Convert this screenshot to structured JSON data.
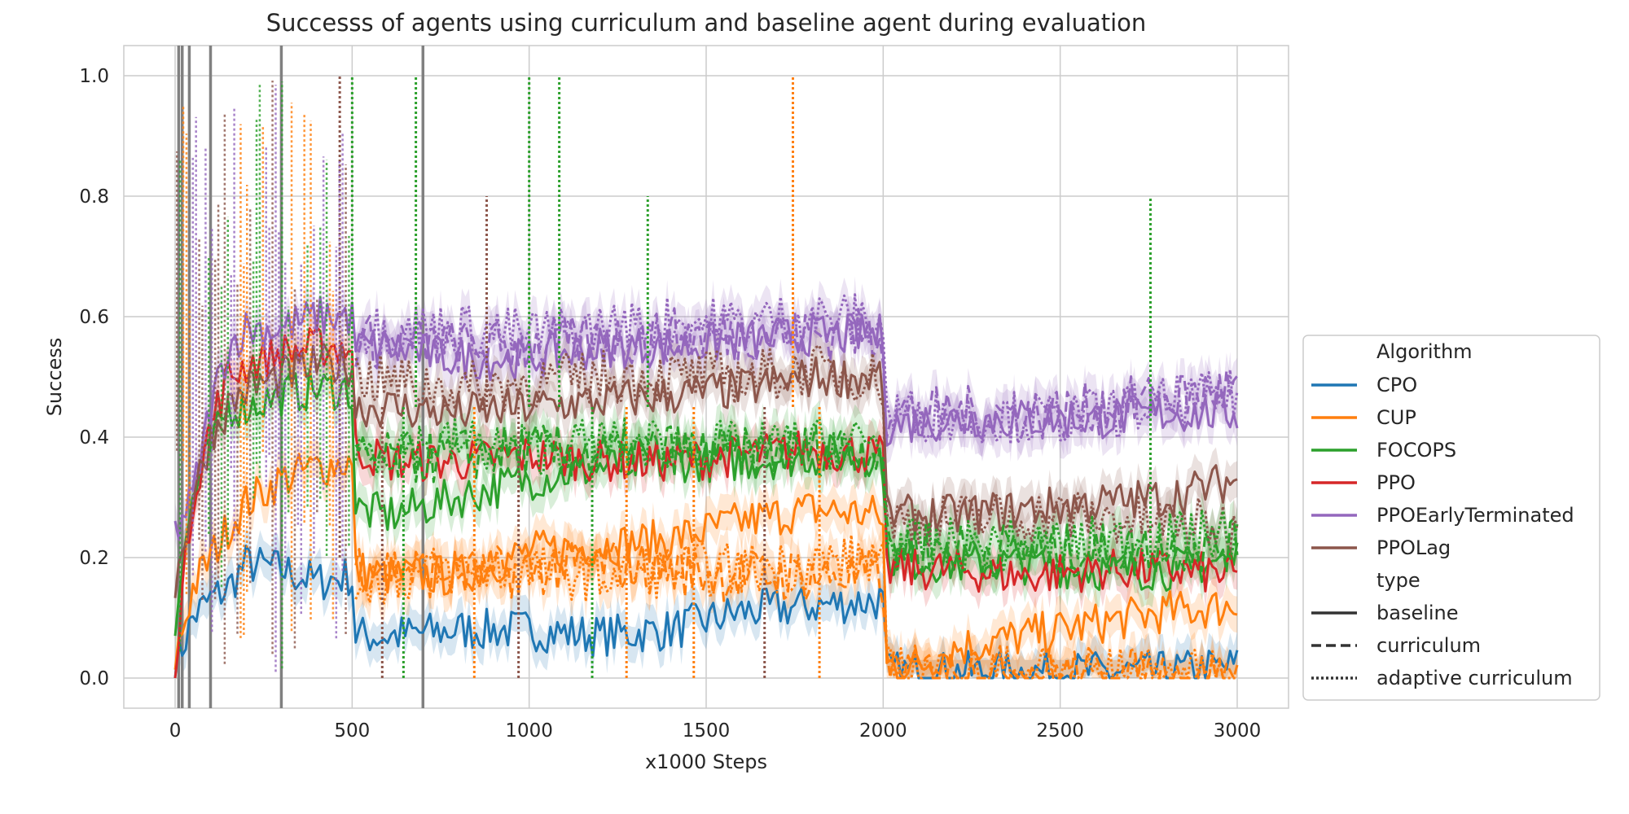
{
  "chart_data": {
    "type": "line",
    "title": "Successs of agents using curriculum and baseline agent during evaluation",
    "xlabel": "x1000 Steps",
    "ylabel": "Success",
    "xlim": [
      -145,
      3145
    ],
    "ylim": [
      -0.05,
      1.05
    ],
    "xticks": [
      0,
      500,
      1000,
      1500,
      2000,
      2500,
      3000
    ],
    "yticks": [
      0.0,
      0.2,
      0.4,
      0.6,
      0.8,
      1.0
    ],
    "xtick_labels": [
      "0",
      "500",
      "1000",
      "1500",
      "2000",
      "2500",
      "3000"
    ],
    "ytick_labels": [
      "0.0",
      "0.2",
      "0.4",
      "0.6",
      "0.8",
      "1.0"
    ],
    "grid": true,
    "legend_position": "right",
    "legend": {
      "algorithm_title": "Algorithm",
      "algorithms": [
        {
          "name": "CPO",
          "color": "#1f77b4"
        },
        {
          "name": "CUP",
          "color": "#ff7f0e"
        },
        {
          "name": "FOCOPS",
          "color": "#2ca02c"
        },
        {
          "name": "PPO",
          "color": "#d62728"
        },
        {
          "name": "PPOEarlyTerminated",
          "color": "#9467bd"
        },
        {
          "name": "PPOLag",
          "color": "#8c564b"
        }
      ],
      "type_title": "type",
      "types": [
        {
          "name": "baseline",
          "dash": "solid"
        },
        {
          "name": "curriculum",
          "dash": "dashed"
        },
        {
          "name": "adaptive curriculum",
          "dash": "dotted"
        }
      ]
    },
    "vertical_markers": [
      10,
      20,
      40,
      100,
      300,
      700
    ],
    "series": [
      {
        "algorithm": "CPO",
        "type": "baseline",
        "x": [
          0,
          50,
          100,
          150,
          200,
          300,
          400,
          499,
          510,
          600,
          800,
          1000,
          1200,
          1400,
          1600,
          1800,
          1999,
          2010,
          2200,
          2400,
          2600,
          2800,
          3000
        ],
        "y": [
          0.02,
          0.1,
          0.13,
          0.15,
          0.19,
          0.18,
          0.16,
          0.17,
          0.07,
          0.07,
          0.08,
          0.08,
          0.07,
          0.08,
          0.11,
          0.12,
          0.13,
          0.01,
          0.01,
          0.01,
          0.01,
          0.01,
          0.02
        ]
      },
      {
        "algorithm": "CUP",
        "type": "baseline",
        "x": [
          0,
          50,
          100,
          150,
          200,
          300,
          400,
          499,
          510,
          600,
          800,
          1000,
          1200,
          1400,
          1600,
          1800,
          1999,
          2010,
          2100,
          2200,
          2400,
          2600,
          2800,
          3000
        ],
        "y": [
          0.03,
          0.15,
          0.2,
          0.25,
          0.29,
          0.33,
          0.35,
          0.36,
          0.18,
          0.17,
          0.17,
          0.21,
          0.22,
          0.23,
          0.26,
          0.28,
          0.27,
          0.02,
          0.02,
          0.05,
          0.07,
          0.09,
          0.11,
          0.12
        ]
      },
      {
        "algorithm": "FOCOPS",
        "type": "baseline",
        "x": [
          0,
          50,
          100,
          150,
          200,
          300,
          400,
          499,
          510,
          600,
          800,
          1000,
          1200,
          1400,
          1600,
          1800,
          1999,
          2010,
          2200,
          2400,
          2600,
          2800,
          3000
        ],
        "y": [
          0.1,
          0.3,
          0.38,
          0.45,
          0.45,
          0.47,
          0.48,
          0.48,
          0.28,
          0.27,
          0.3,
          0.33,
          0.35,
          0.36,
          0.36,
          0.37,
          0.37,
          0.2,
          0.19,
          0.19,
          0.18,
          0.18,
          0.2
        ]
      },
      {
        "algorithm": "PPO",
        "type": "baseline",
        "x": [
          0,
          50,
          100,
          150,
          200,
          300,
          400,
          499,
          510,
          600,
          800,
          1000,
          1200,
          1400,
          1600,
          1800,
          1999,
          2010,
          2200,
          2400,
          2600,
          2800,
          3000
        ],
        "y": [
          0.03,
          0.3,
          0.42,
          0.5,
          0.52,
          0.54,
          0.55,
          0.55,
          0.38,
          0.36,
          0.36,
          0.37,
          0.36,
          0.36,
          0.37,
          0.38,
          0.37,
          0.18,
          0.18,
          0.17,
          0.18,
          0.18,
          0.17
        ]
      },
      {
        "algorithm": "PPOEarlyTerminated",
        "type": "baseline",
        "x": [
          0,
          50,
          100,
          150,
          200,
          300,
          400,
          499,
          510,
          600,
          800,
          1000,
          1200,
          1400,
          1600,
          1800,
          1999,
          2010,
          2200,
          2400,
          2600,
          2800,
          3000
        ],
        "y": [
          0.24,
          0.3,
          0.45,
          0.55,
          0.58,
          0.58,
          0.6,
          0.6,
          0.55,
          0.55,
          0.53,
          0.53,
          0.55,
          0.55,
          0.56,
          0.57,
          0.57,
          0.42,
          0.43,
          0.43,
          0.43,
          0.44,
          0.44
        ]
      },
      {
        "algorithm": "PPOLag",
        "type": "baseline",
        "x": [
          0,
          50,
          100,
          150,
          200,
          300,
          400,
          499,
          510,
          600,
          800,
          1000,
          1200,
          1400,
          1600,
          1800,
          1999,
          2010,
          2200,
          2400,
          2600,
          2800,
          3000
        ],
        "y": [
          0.15,
          0.3,
          0.4,
          0.45,
          0.48,
          0.5,
          0.52,
          0.52,
          0.45,
          0.45,
          0.44,
          0.45,
          0.46,
          0.47,
          0.48,
          0.5,
          0.5,
          0.27,
          0.27,
          0.28,
          0.29,
          0.3,
          0.33
        ]
      },
      {
        "algorithm": "CUP",
        "type": "curriculum",
        "x": [
          510,
          800,
          1000,
          1200,
          1400,
          1600,
          1800,
          1999,
          2010,
          2500,
          3000
        ],
        "y": [
          0.19,
          0.17,
          0.18,
          0.19,
          0.18,
          0.17,
          0.17,
          0.17,
          0.01,
          0.01,
          0.0
        ]
      },
      {
        "algorithm": "PPOEarlyTerminated",
        "type": "curriculum",
        "x": [
          510,
          800,
          1000,
          1200,
          1400,
          1600,
          1800,
          1999,
          2010,
          2500,
          3000
        ],
        "y": [
          0.56,
          0.55,
          0.55,
          0.56,
          0.57,
          0.57,
          0.57,
          0.57,
          0.44,
          0.44,
          0.48
        ]
      },
      {
        "algorithm": "FOCOPS",
        "type": "curriculum",
        "x": [
          510,
          800,
          1000,
          1200,
          1400,
          1600,
          1800,
          1999,
          2010,
          2500,
          3000
        ],
        "y": [
          0.36,
          0.37,
          0.38,
          0.37,
          0.38,
          0.37,
          0.38,
          0.38,
          0.22,
          0.21,
          0.22
        ]
      },
      {
        "algorithm": "CUP",
        "type": "adaptive curriculum",
        "x": [
          510,
          800,
          1000,
          1200,
          1400,
          1600,
          1800,
          1999,
          2010,
          2500,
          3000
        ],
        "y": [
          0.16,
          0.18,
          0.18,
          0.17,
          0.18,
          0.18,
          0.19,
          0.2,
          0.01,
          0.01,
          0.0
        ]
      },
      {
        "algorithm": "PPOLag",
        "type": "adaptive curriculum",
        "x": [
          510,
          800,
          1000,
          1200,
          1400,
          1600,
          1800,
          1999,
          2010,
          2500,
          3000
        ],
        "y": [
          0.5,
          0.48,
          0.49,
          0.5,
          0.5,
          0.5,
          0.51,
          0.5,
          0.26,
          0.27,
          0.25
        ]
      },
      {
        "algorithm": "PPOEarlyTerminated",
        "type": "adaptive curriculum",
        "x": [
          510,
          800,
          1000,
          1200,
          1400,
          1600,
          1800,
          1999,
          2010,
          2500,
          3000
        ],
        "y": [
          0.58,
          0.58,
          0.57,
          0.58,
          0.59,
          0.59,
          0.6,
          0.59,
          0.44,
          0.43,
          0.47
        ]
      },
      {
        "algorithm": "FOCOPS",
        "type": "adaptive curriculum",
        "x": [
          510,
          800,
          1000,
          1200,
          1400,
          1600,
          1800,
          1999,
          2010,
          2500,
          3000
        ],
        "y": [
          0.38,
          0.39,
          0.38,
          0.39,
          0.39,
          0.38,
          0.39,
          0.39,
          0.22,
          0.22,
          0.24
        ]
      }
    ],
    "spikes": [
      {
        "algorithm": "FOCOPS",
        "type": "adaptive curriculum",
        "x": [
          500,
          680,
          1000,
          1085,
          1335,
          2755
        ],
        "y": [
          1.0,
          1.0,
          1.0,
          1.0,
          0.8,
          0.8
        ]
      },
      {
        "algorithm": "CUP",
        "type": "adaptive curriculum",
        "x": [
          1745
        ],
        "y": [
          1.0
        ]
      },
      {
        "algorithm": "PPOLag",
        "type": "adaptive curriculum",
        "x": [
          465,
          880
        ],
        "y": [
          1.0,
          0.8
        ]
      },
      {
        "algorithm": "FOCOPS",
        "type": "adaptive curriculum",
        "x": [
          1178,
          645
        ],
        "y": [
          0.0,
          0.0
        ]
      },
      {
        "algorithm": "CUP",
        "type": "adaptive curriculum",
        "x": [
          845,
          1275,
          1465,
          1820
        ],
        "y": [
          0.0,
          0.0,
          0.0,
          0.0
        ]
      },
      {
        "algorithm": "PPOLag",
        "type": "adaptive curriculum",
        "x": [
          585,
          970,
          1665
        ],
        "y": [
          0.0,
          0.0,
          0.0
        ]
      }
    ]
  }
}
